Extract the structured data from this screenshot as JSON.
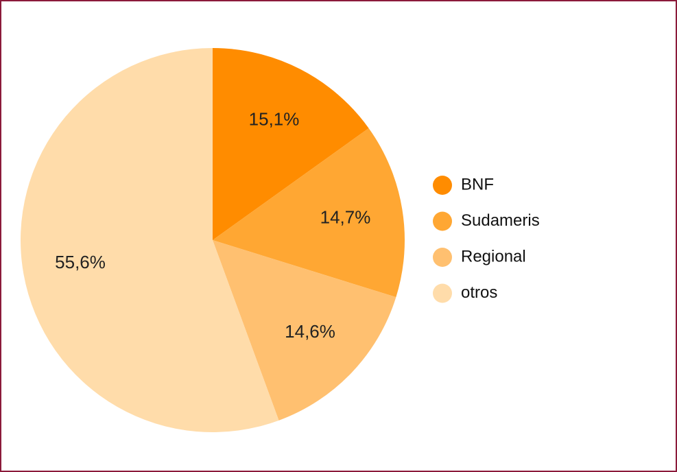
{
  "chart_data": {
    "type": "pie",
    "categories": [
      "BNF",
      "Sudameris",
      "Regional",
      "otros"
    ],
    "values": [
      15.1,
      14.7,
      14.6,
      55.6
    ],
    "value_labels": [
      "15,1%",
      "14,7%",
      "14,6%",
      "55,6%"
    ],
    "colors": [
      "#ff8c00",
      "#ffa733",
      "#ffc070",
      "#ffdcaa"
    ],
    "legend": "right"
  }
}
